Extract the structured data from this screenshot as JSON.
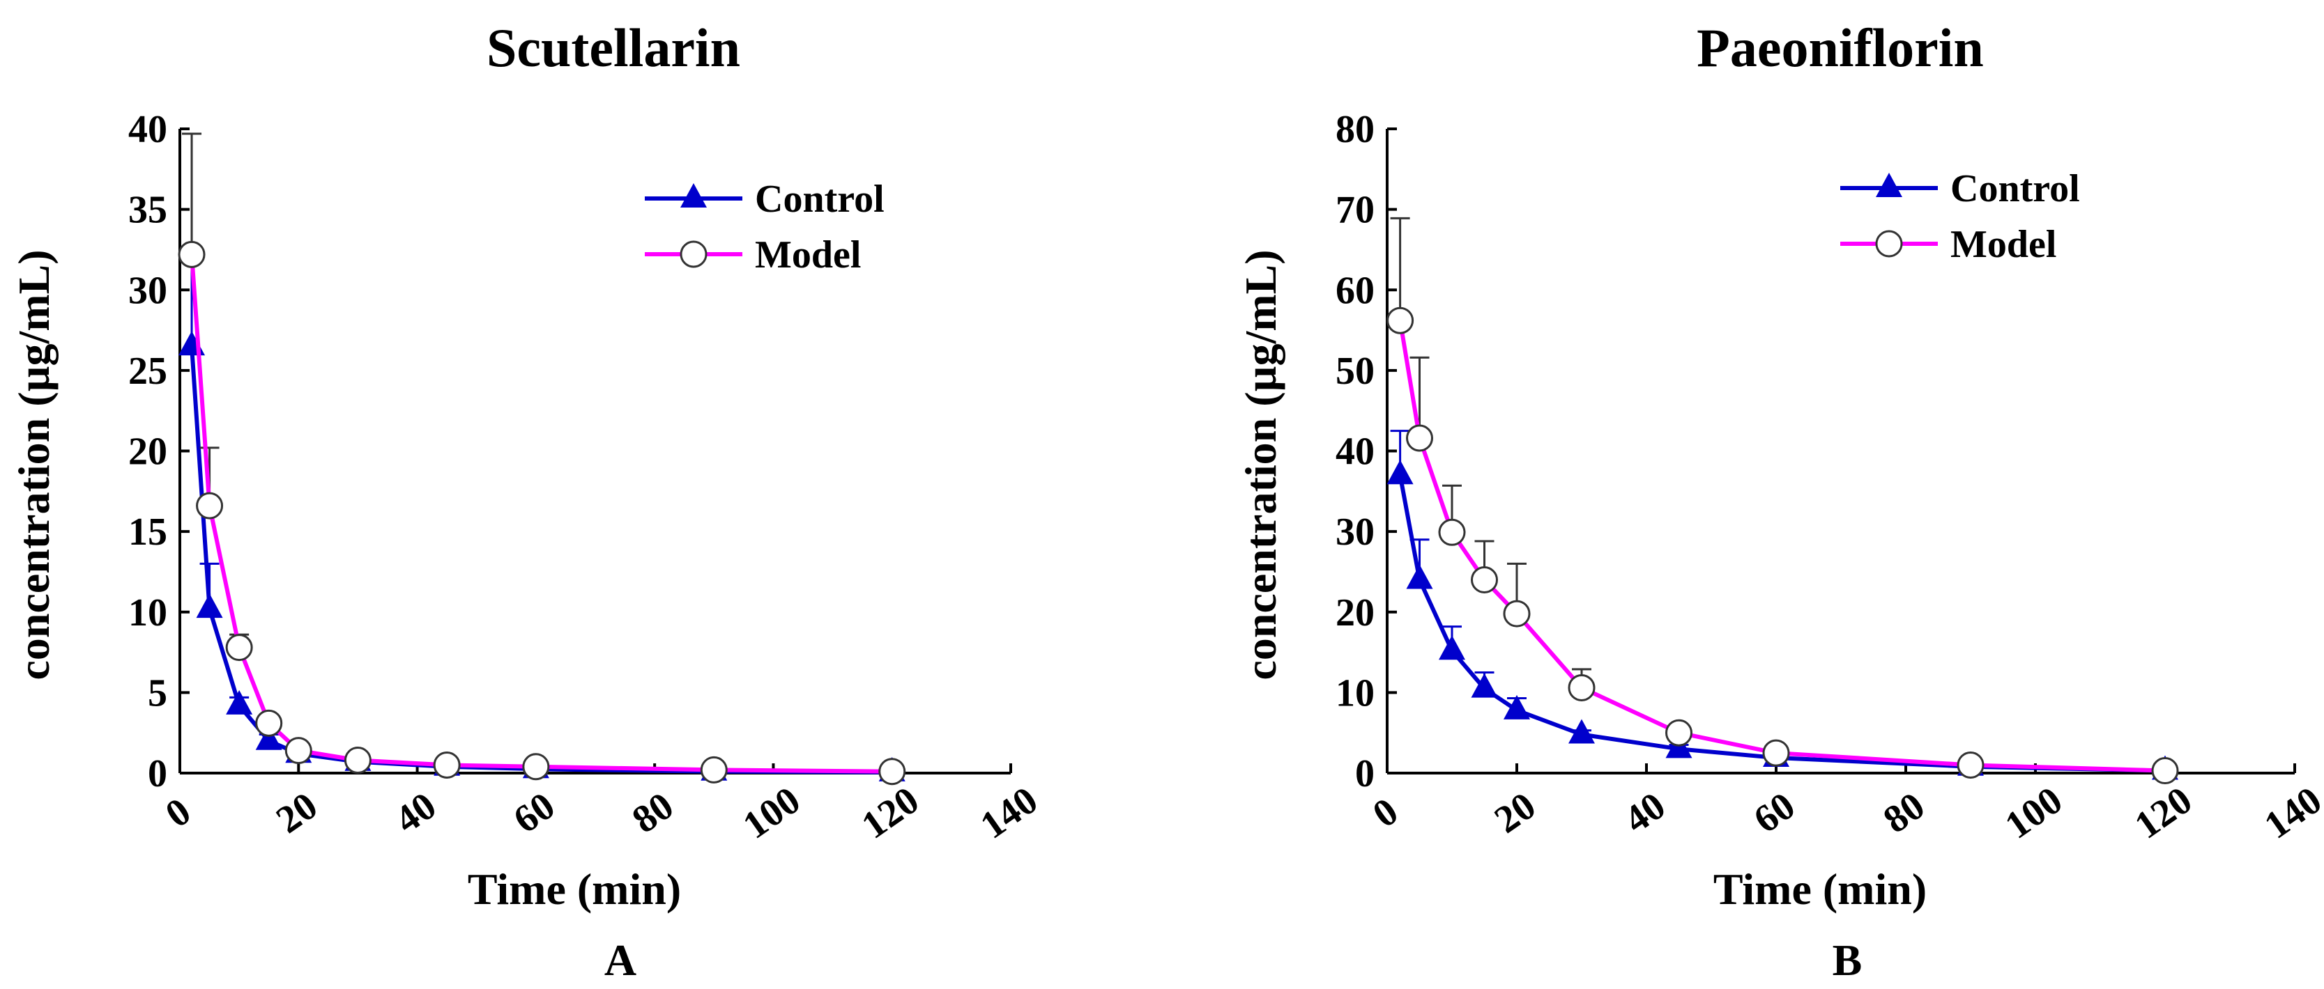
{
  "chart_data": [
    {
      "panel": "A",
      "type": "line",
      "title": "Scutellarin",
      "xlabel": "Time (min)",
      "ylabel": "concentration (µg/mL)",
      "xlim": [
        0,
        140
      ],
      "ylim": [
        0,
        40
      ],
      "xticks": [
        "0",
        "20",
        "40",
        "60",
        "80",
        "100",
        "120",
        "140"
      ],
      "yticks": [
        "0",
        "5",
        "10",
        "15",
        "20",
        "25",
        "30",
        "35",
        "40"
      ],
      "legend": "top-right",
      "series": [
        {
          "name": "Control",
          "color": "#0000cc",
          "marker": "triangle",
          "x": [
            2,
            5,
            10,
            15,
            20,
            30,
            45,
            60,
            90,
            120
          ],
          "y": [
            26.5,
            10.2,
            4.2,
            2.0,
            1.2,
            0.7,
            0.4,
            0.25,
            0.1,
            0.05
          ],
          "err": [
            5.5,
            2.8,
            0.5,
            0.4,
            0.2,
            0.1,
            0.1,
            0.05,
            0.03,
            0.02
          ]
        },
        {
          "name": "Model",
          "color": "#ff00ff",
          "marker": "circle",
          "x": [
            2,
            5,
            10,
            15,
            20,
            30,
            45,
            60,
            90,
            120
          ],
          "y": [
            32.2,
            16.6,
            7.8,
            3.1,
            1.4,
            0.8,
            0.5,
            0.4,
            0.2,
            0.1
          ],
          "err": [
            7.5,
            3.6,
            0.8,
            0.3,
            0.2,
            0.1,
            0.1,
            0.05,
            0.03,
            0.02
          ]
        }
      ]
    },
    {
      "panel": "B",
      "type": "line",
      "title": "Paeoniflorin",
      "xlabel": "Time (min)",
      "ylabel": "concentration (µg/mL)",
      "xlim": [
        0,
        140
      ],
      "ylim": [
        0,
        80
      ],
      "xticks": [
        "0",
        "20",
        "40",
        "60",
        "80",
        "100",
        "120",
        "140"
      ],
      "yticks": [
        "0",
        "10",
        "20",
        "30",
        "40",
        "50",
        "60",
        "70",
        "80"
      ],
      "legend": "top-right",
      "series": [
        {
          "name": "Control",
          "color": "#0000cc",
          "marker": "triangle",
          "x": [
            2,
            5,
            10,
            15,
            20,
            30,
            45,
            60,
            90,
            120
          ],
          "y": [
            37.0,
            24.0,
            15.2,
            10.5,
            7.8,
            4.8,
            3.0,
            1.9,
            0.8,
            0.3
          ],
          "err": [
            5.5,
            5.0,
            3.0,
            2.0,
            1.5,
            0.5,
            0.5,
            0.3,
            0.2,
            0.1
          ]
        },
        {
          "name": "Model",
          "color": "#ff00ff",
          "marker": "circle",
          "x": [
            2,
            5,
            10,
            15,
            20,
            30,
            45,
            60,
            90,
            120
          ],
          "y": [
            56.2,
            41.6,
            29.9,
            24.0,
            19.8,
            10.6,
            5.0,
            2.5,
            1.0,
            0.3
          ],
          "err": [
            12.7,
            10.0,
            5.8,
            4.8,
            6.2,
            2.3,
            0.6,
            0.4,
            0.2,
            0.1
          ]
        }
      ]
    }
  ]
}
